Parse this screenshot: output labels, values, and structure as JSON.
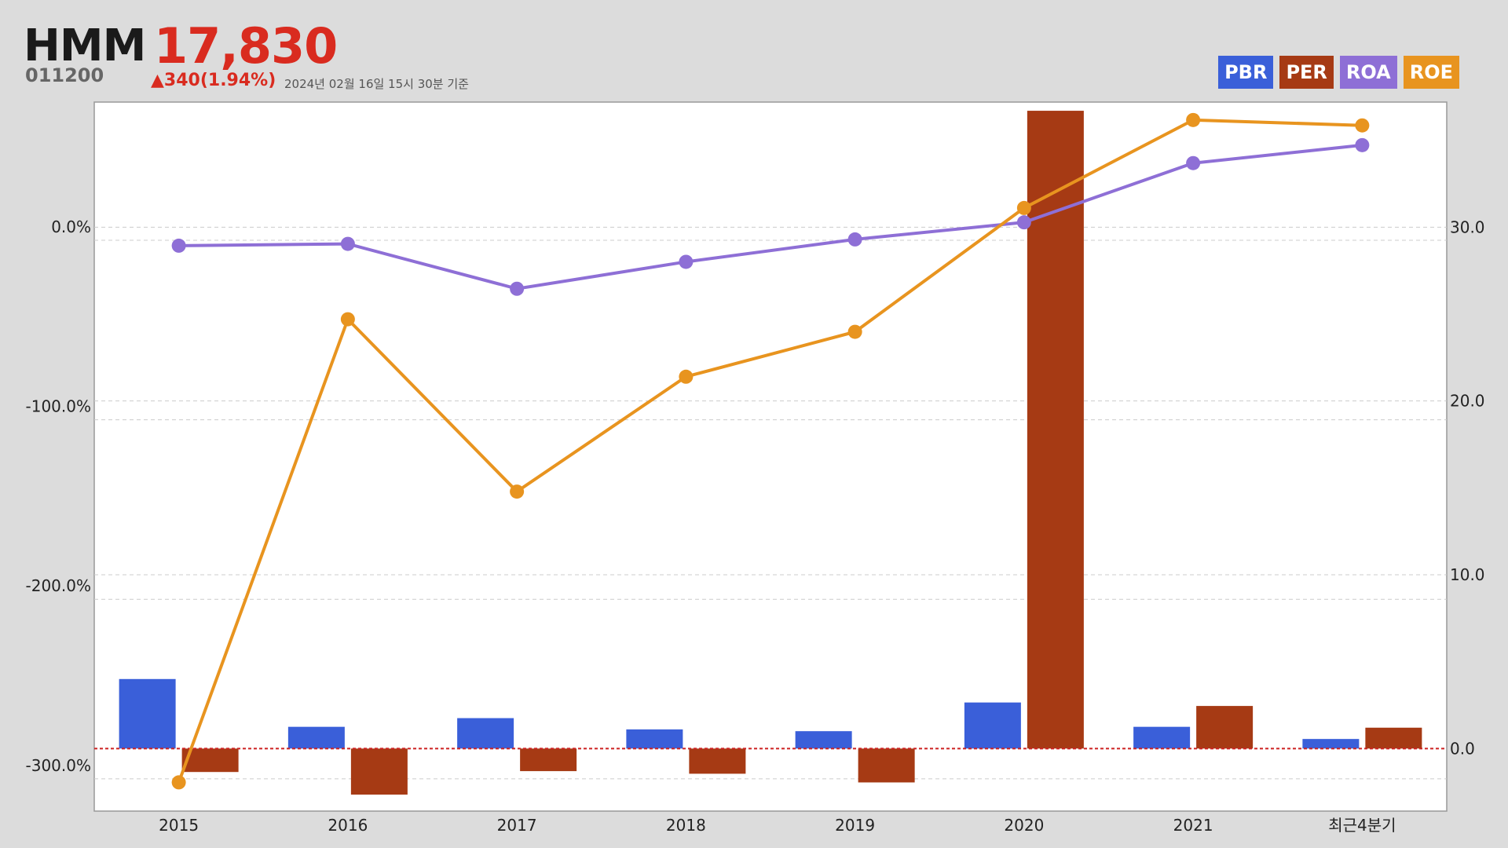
{
  "header": {
    "name": "HMM",
    "price": "17,830",
    "code": "011200",
    "change": "▲340(1.94%)",
    "asof": "2024년 02월 16일 15시 30분 기준"
  },
  "legend": [
    {
      "label": "PBR",
      "color": "#3a5fd9"
    },
    {
      "label": "PER",
      "color": "#a63a14"
    },
    {
      "label": "ROA",
      "color": "#8e6fd6"
    },
    {
      "label": "ROE",
      "color": "#e8941f"
    }
  ],
  "chart_data": {
    "type": "bar",
    "categories": [
      "2015",
      "2016",
      "2017",
      "2018",
      "2019",
      "2020",
      "2021",
      "최근4분기"
    ],
    "left_axis": {
      "ticks": [
        "0.0%",
        "-100.0%",
        "-200.0%",
        "-300.0%"
      ],
      "values": [
        0,
        -100,
        -200,
        -300
      ],
      "range": [
        -318,
        77
      ]
    },
    "right_axis": {
      "ticks": [
        "30.0",
        "20.0",
        "10.0",
        "0.0"
      ],
      "values": [
        30,
        20,
        10,
        0
      ],
      "range": [
        -3.6,
        37.2
      ]
    },
    "series": [
      {
        "name": "PBR",
        "type": "bar",
        "axis": "right",
        "color": "#3a5fd9",
        "values": [
          4.0,
          1.25,
          1.75,
          1.1,
          1.0,
          2.65,
          1.25,
          0.55
        ]
      },
      {
        "name": "PER",
        "type": "bar",
        "axis": "right",
        "color": "#a63a14",
        "values": [
          -1.35,
          -2.65,
          -1.3,
          -1.45,
          -1.95,
          36.7,
          2.45,
          1.2
        ]
      },
      {
        "name": "ROA",
        "type": "line",
        "axis": "left",
        "color": "#8e6fd6",
        "values": [
          -3,
          -2,
          -27,
          -12,
          0.5,
          10,
          43,
          53
        ]
      },
      {
        "name": "ROE",
        "type": "line",
        "axis": "left",
        "color": "#e8941f",
        "values": [
          -302,
          -44,
          -140,
          -76,
          -51,
          18,
          67,
          64
        ]
      }
    ],
    "zero_line_color": "#cc2222",
    "grid": true
  }
}
